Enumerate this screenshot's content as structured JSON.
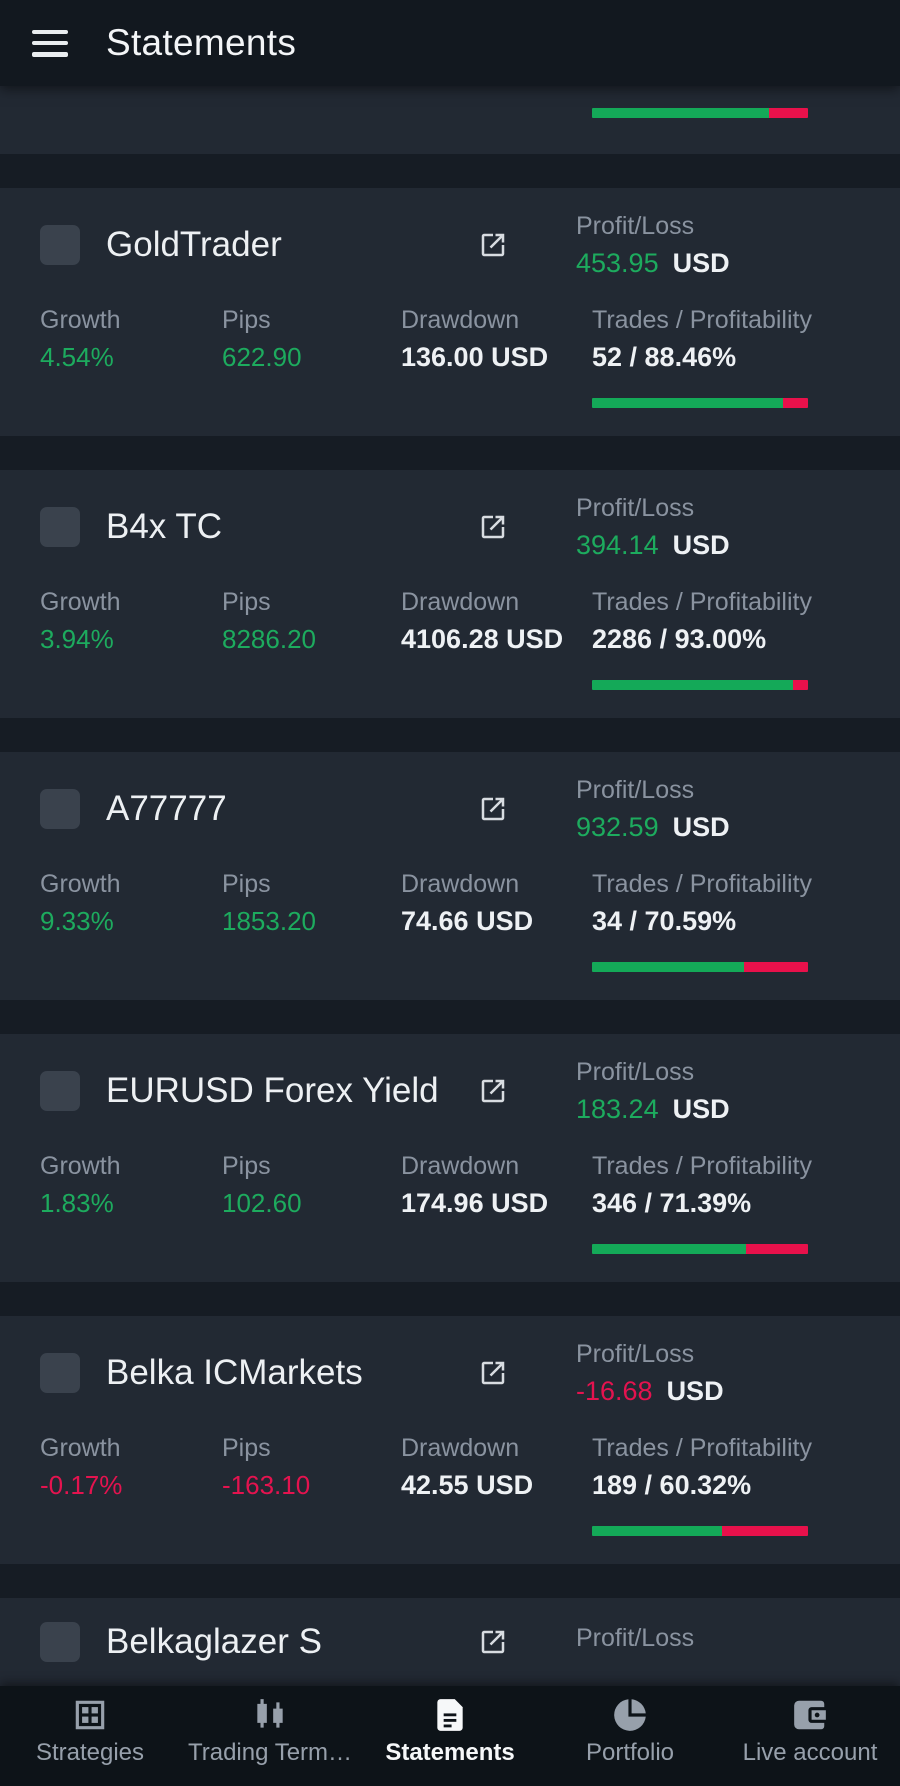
{
  "app_bar": {
    "title": "Statements"
  },
  "labels": {
    "profit_loss": "Profit/Loss",
    "growth": "Growth",
    "pips": "Pips",
    "drawdown": "Drawdown",
    "trades_profitability": "Trades / Profitability"
  },
  "colors": {
    "positive": "#1dab5e",
    "negative": "#e4134f",
    "bar_green": "#14a958",
    "bar_red": "#e8114b",
    "card_bg": "#222933",
    "page_bg": "#161c24",
    "accent_text": "#eef1f4",
    "muted_text": "#8a93a0"
  },
  "partial_card_top": {
    "bar_green_pct": 82
  },
  "statements": [
    {
      "name": "GoldTrader",
      "profit_loss": "453.95",
      "currency": "USD",
      "growth": "4.54%",
      "pips": "622.90",
      "drawdown": "136.00 USD",
      "trades_profitability": "52 / 88.46%",
      "bar_green_pct": 88.5,
      "negative": false
    },
    {
      "name": "B4x TC",
      "profit_loss": "394.14",
      "currency": "USD",
      "growth": "3.94%",
      "pips": "8286.20",
      "drawdown": "4106.28 USD",
      "trades_profitability": "2286 / 93.00%",
      "bar_green_pct": 93,
      "negative": false
    },
    {
      "name": "A77777",
      "profit_loss": "932.59",
      "currency": "USD",
      "growth": "9.33%",
      "pips": "1853.20",
      "drawdown": "74.66 USD",
      "trades_profitability": "34 / 70.59%",
      "bar_green_pct": 70.6,
      "negative": false
    },
    {
      "name": "EURUSD Forex Yield",
      "profit_loss": "183.24",
      "currency": "USD",
      "growth": "1.83%",
      "pips": "102.60",
      "drawdown": "174.96 USD",
      "trades_profitability": "346 / 71.39%",
      "bar_green_pct": 71.4,
      "negative": false
    },
    {
      "name": "Belka ICMarkets",
      "profit_loss": "-16.68",
      "currency": "USD",
      "growth": "-0.17%",
      "pips": "-163.10",
      "drawdown": "42.55 USD",
      "trades_profitability": "189 / 60.32%",
      "bar_green_pct": 60.3,
      "negative": true
    },
    {
      "name": "Belkaglazer S",
      "partial": true,
      "bar_green_pct": 0,
      "negative": false
    }
  ],
  "bottom_nav": {
    "items": [
      {
        "label": "Strategies",
        "icon": "strategies-icon",
        "active": false
      },
      {
        "label": "Trading Term…",
        "icon": "trading-terminals-icon",
        "active": false
      },
      {
        "label": "Statements",
        "icon": "statements-icon",
        "active": true
      },
      {
        "label": "Portfolio",
        "icon": "portfolio-icon",
        "active": false
      },
      {
        "label": "Live account",
        "icon": "live-account-icon",
        "active": false
      }
    ]
  }
}
